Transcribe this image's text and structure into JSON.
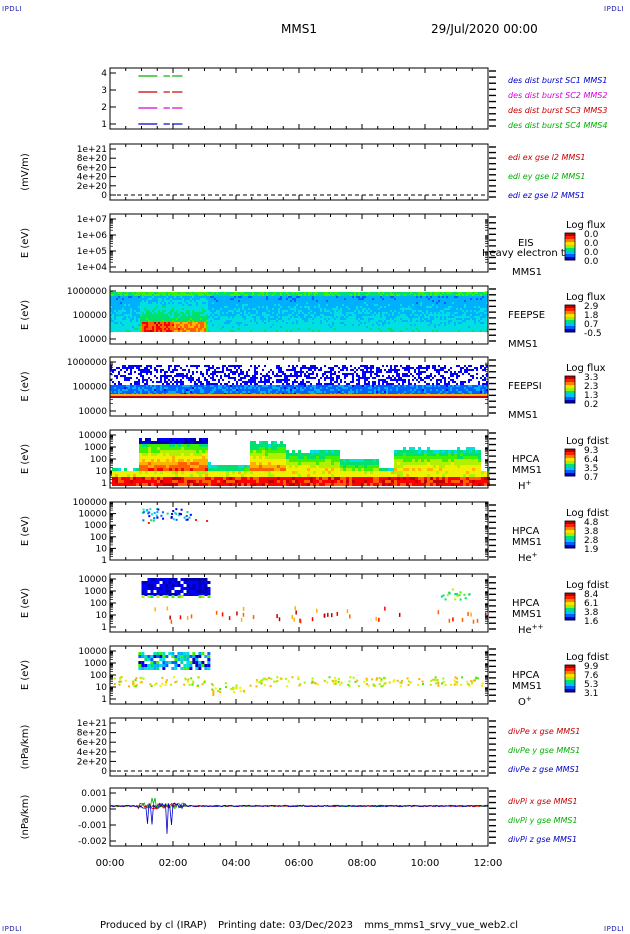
{
  "corners": {
    "tl": "IPDLI",
    "tr": "IPDLI",
    "bl": "IPDLI",
    "br": "IPDLI"
  },
  "header": {
    "spacecraft": "MMS1",
    "date": "29/Jul/2020 00:00"
  },
  "footer": {
    "produced_by": "Produced by cl (IRAP)",
    "printing_date": "Printing date: 03/Dec/2023",
    "file": "mms_mms1_srvy_vue_web2.cl"
  },
  "chart_data": [
    {
      "type": "line",
      "id": "des-dist",
      "yticks": [
        "4",
        "3",
        "2",
        "1"
      ],
      "legend": [
        {
          "text": "des dist burst SC1 MMS1",
          "color": "#0000c8"
        },
        {
          "text": "des dist burst SC2 MMS2",
          "color": "#d800d8"
        },
        {
          "text": "des dist burst SC3 MMS3",
          "color": "#c80000"
        },
        {
          "text": "des dist burst SC4 MMS4",
          "color": "#00b000"
        }
      ]
    },
    {
      "type": "line",
      "id": "edi-e",
      "ylabel": "(mV/m)",
      "yticks": [
        "1e+21",
        "8e+20",
        "6e+20",
        "4e+20",
        "2e+20",
        "0"
      ],
      "legend": [
        {
          "text": "edi ex gse l2 MMS1",
          "color": "#c80000"
        },
        {
          "text": "edi ey gse l2 MMS1",
          "color": "#00b000"
        },
        {
          "text": "edi ez gse l2 MMS1",
          "color": "#0000c8"
        }
      ]
    },
    {
      "type": "heatmap",
      "id": "eis",
      "ylabel": "E (eV)",
      "yticks": [
        "1e+07",
        "1e+06",
        "1e+05",
        "1e+04"
      ],
      "labels": [
        "EIS",
        "MMS1"
      ],
      "overlay": "Heavy electron to",
      "colorbar": {
        "title": "Log flux",
        "ticks": [
          "0.0",
          "0.0",
          "0.0",
          "0.0"
        ]
      }
    },
    {
      "type": "heatmap",
      "id": "feepse",
      "ylabel": "E (eV)",
      "yticks": [
        "1000000",
        "100000",
        "10000"
      ],
      "labels": [
        "FEEPSE",
        "MMS1"
      ],
      "colorbar": {
        "title": "Log flux",
        "ticks": [
          "2.9",
          "1.8",
          "0.7",
          "-0.5"
        ]
      }
    },
    {
      "type": "heatmap",
      "id": "feepsi",
      "ylabel": "E (eV)",
      "yticks": [
        "1000000",
        "100000",
        "10000"
      ],
      "labels": [
        "FEEPSI",
        "MMS1"
      ],
      "colorbar": {
        "title": "Log flux",
        "ticks": [
          "3.3",
          "2.3",
          "1.3",
          "0.2"
        ]
      }
    },
    {
      "type": "heatmap",
      "id": "hpca-h",
      "ylabel": "E (eV)",
      "yticks": [
        "10000",
        "1000",
        "100",
        "10",
        "1"
      ],
      "labels": [
        "HPCA",
        "MMS1"
      ],
      "species": "H",
      "species_sup": "+",
      "colorbar": {
        "title": "Log fdist",
        "ticks": [
          "9.3",
          "6.4",
          "3.5",
          "0.7"
        ]
      }
    },
    {
      "type": "heatmap",
      "id": "hpca-he",
      "ylabel": "E (eV)",
      "yticks": [
        "100000",
        "10000",
        "1000",
        "100",
        "10",
        "1"
      ],
      "labels": [
        "HPCA",
        "MMS1"
      ],
      "species": "He",
      "species_sup": "+",
      "colorbar": {
        "title": "Log fdist",
        "ticks": [
          "4.8",
          "3.8",
          "2.8",
          "1.9"
        ]
      }
    },
    {
      "type": "heatmap",
      "id": "hpca-he2",
      "ylabel": "E (eV)",
      "yticks": [
        "10000",
        "1000",
        "100",
        "10",
        "1"
      ],
      "labels": [
        "HPCA",
        "MMS1"
      ],
      "species": "He",
      "species_sup": "++",
      "colorbar": {
        "title": "Log fdist",
        "ticks": [
          "8.4",
          "6.1",
          "3.8",
          "1.6"
        ]
      }
    },
    {
      "type": "heatmap",
      "id": "hpca-o",
      "ylabel": "E (eV)",
      "yticks": [
        "10000",
        "1000",
        "100",
        "10",
        "1"
      ],
      "labels": [
        "HPCA",
        "MMS1"
      ],
      "species": "O",
      "species_sup": "+",
      "colorbar": {
        "title": "Log fdist",
        "ticks": [
          "9.9",
          "7.6",
          "5.3",
          "3.1"
        ]
      }
    },
    {
      "type": "line",
      "id": "divpe",
      "ylabel": "(nPa/km)",
      "yticks": [
        "1e+21",
        "8e+20",
        "6e+20",
        "4e+20",
        "2e+20",
        "0"
      ],
      "legend": [
        {
          "text": "divPe x gse MMS1",
          "color": "#c80000"
        },
        {
          "text": "divPe y gse MMS1",
          "color": "#00b000"
        },
        {
          "text": "divPe z gse MMS1",
          "color": "#0000c8"
        }
      ]
    },
    {
      "type": "line",
      "id": "divpi",
      "ylabel": "(nPa/km)",
      "yticks": [
        "0.001",
        "0.000",
        "-0.001",
        "-0.002"
      ],
      "legend": [
        {
          "text": "divPi x gse MMS1",
          "color": "#c80000"
        },
        {
          "text": "divPi y gse MMS1",
          "color": "#00b000"
        },
        {
          "text": "divPi z gse MMS1",
          "color": "#0000c8"
        }
      ]
    }
  ],
  "x_axis": {
    "ticks": [
      "00:00",
      "02:00",
      "04:00",
      "06:00",
      "08:00",
      "10:00",
      "12:00"
    ],
    "range_hours": [
      0,
      12
    ]
  }
}
